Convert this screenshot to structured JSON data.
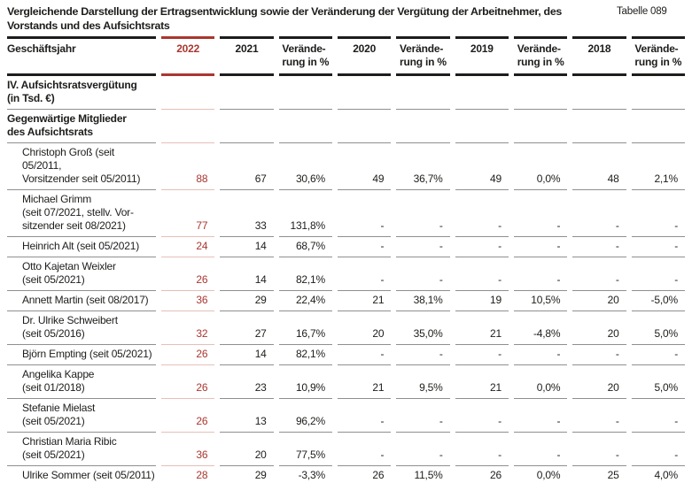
{
  "page": {
    "title": "Vergleichende Darstellung der Ertragsentwicklung sowie der Veränderung der Vergütung der Arbeitnehmer, des\nVorstands und des Aufsichtsrats",
    "table_label": "Tabelle 089"
  },
  "colors": {
    "accent_red": "#aa362f",
    "separator_gray": "#8f8f8f",
    "separator_pink": "#e6bfb8",
    "ink": "#1d1d1b"
  },
  "table": {
    "columns": [
      {
        "label": "Geschäftsjahr",
        "accent": false
      },
      {
        "label": "2022",
        "accent": true
      },
      {
        "label": "2021",
        "accent": false
      },
      {
        "label": "Verände-\nrung in %",
        "accent": false
      },
      {
        "label": "2020",
        "accent": false
      },
      {
        "label": "Verände-\nrung in %",
        "accent": false
      },
      {
        "label": "2019",
        "accent": false
      },
      {
        "label": "Verände-\nrung in %",
        "accent": false
      },
      {
        "label": "2018",
        "accent": false
      },
      {
        "label": "Verände-\nrung in %",
        "accent": false
      }
    ],
    "rows": [
      {
        "section": true,
        "name_lines": [
          "IV. Aufsichtsratsvergütung",
          "(in Tsd. €)"
        ],
        "values": [
          "",
          "",
          "",
          "",
          "",
          "",
          "",
          "",
          ""
        ]
      },
      {
        "section": true,
        "name_lines": [
          "Gegenwärtige Mitglieder",
          "des Aufsichtsrats"
        ],
        "values": [
          "",
          "",
          "",
          "",
          "",
          "",
          "",
          "",
          ""
        ]
      },
      {
        "section": false,
        "name_lines": [
          "Christoph Groß (seit 05/2011,",
          "Vorsitzender seit 05/2011)"
        ],
        "values": [
          "88",
          "67",
          "30,6%",
          "49",
          "36,7%",
          "49",
          "0,0%",
          "48",
          "2,1%"
        ]
      },
      {
        "section": false,
        "name_lines": [
          "Michael Grimm",
          "(seit 07/2021, stellv. Vor-",
          "sitzender seit 08/2021)"
        ],
        "values": [
          "77",
          "33",
          "131,8%",
          "-",
          "-",
          "-",
          "-",
          "-",
          "-"
        ]
      },
      {
        "section": false,
        "name_lines": [
          "Heinrich Alt (seit 05/2021)"
        ],
        "values": [
          "24",
          "14",
          "68,7%",
          "-",
          "-",
          "-",
          "-",
          "-",
          "-"
        ]
      },
      {
        "section": false,
        "name_lines": [
          "Otto Kajetan Weixler",
          "(seit 05/2021)"
        ],
        "values": [
          "26",
          "14",
          "82,1%",
          "-",
          "-",
          "-",
          "-",
          "-",
          "-"
        ]
      },
      {
        "section": false,
        "name_lines": [
          "Annett Martin (seit 08/2017)"
        ],
        "values": [
          "36",
          "29",
          "22,4%",
          "21",
          "38,1%",
          "19",
          "10,5%",
          "20",
          "-5,0%"
        ]
      },
      {
        "section": false,
        "name_lines": [
          "Dr. Ulrike Schweibert",
          "(seit 05/2016)"
        ],
        "values": [
          "32",
          "27",
          "16,7%",
          "20",
          "35,0%",
          "21",
          "-4,8%",
          "20",
          "5,0%"
        ]
      },
      {
        "section": false,
        "name_lines": [
          "Björn Empting (seit 05/2021)"
        ],
        "values": [
          "26",
          "14",
          "82,1%",
          "-",
          "-",
          "-",
          "-",
          "-",
          "-"
        ]
      },
      {
        "section": false,
        "name_lines": [
          "Angelika Kappe",
          "(seit 01/2018)"
        ],
        "values": [
          "26",
          "23",
          "10,9%",
          "21",
          "9,5%",
          "21",
          "0,0%",
          "20",
          "5,0%"
        ]
      },
      {
        "section": false,
        "name_lines": [
          "Stefanie Mielast",
          "(seit 05/2021)"
        ],
        "values": [
          "26",
          "13",
          "96,2%",
          "-",
          "-",
          "-",
          "-",
          "-",
          "-"
        ]
      },
      {
        "section": false,
        "name_lines": [
          "Christian Maria Ribic",
          "(seit 05/2021)"
        ],
        "values": [
          "36",
          "20",
          "77,5%",
          "-",
          "-",
          "-",
          "-",
          "-",
          "-"
        ]
      },
      {
        "section": false,
        "name_lines": [
          "Ulrike Sommer (seit 05/2011)"
        ],
        "values": [
          "28",
          "29",
          "-3,3%",
          "26",
          "11,5%",
          "26",
          "0,0%",
          "25",
          "4,0%"
        ]
      }
    ]
  }
}
